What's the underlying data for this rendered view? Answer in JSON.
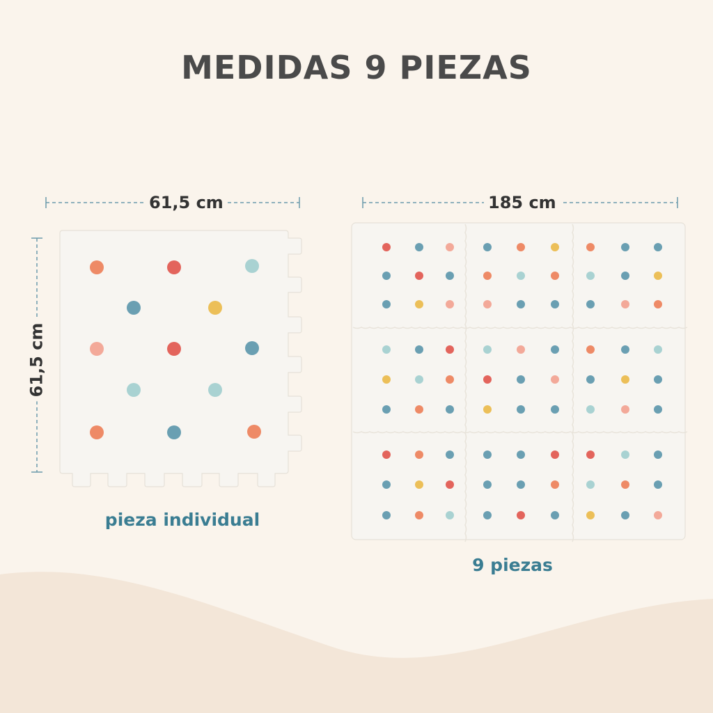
{
  "title": "MEDIDAS 9 PIEZAS",
  "single": {
    "width_label": "61,5 cm",
    "height_label": "61,5 cm",
    "caption": "pieza individual"
  },
  "set": {
    "width_label": "185 cm",
    "caption": "9 piezas"
  },
  "colors": {
    "background": "#faf4ec",
    "wave": "#f3e6d8",
    "tile": "#f7f5f1",
    "accent_text": "#3a7d92",
    "dim_line": "#6a9aab",
    "dots": {
      "coral": "#ee8a66",
      "red": "#e3645c",
      "teal": "#6a9fb2",
      "mint": "#a9d2d2",
      "yellow": "#ecbf58",
      "peach": "#f3a999"
    }
  }
}
